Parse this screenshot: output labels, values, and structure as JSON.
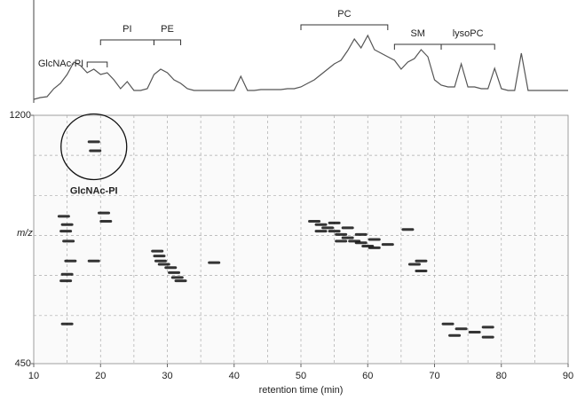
{
  "chart_data": [
    {
      "type": "line",
      "color": "#555",
      "ylim": [
        0,
        100
      ],
      "x": [
        10,
        11,
        12,
        13,
        14,
        15,
        16,
        17,
        18,
        19,
        20,
        21,
        22,
        23,
        24,
        25,
        26,
        27,
        28,
        29,
        30,
        31,
        32,
        33,
        34,
        35,
        36,
        37,
        38,
        39,
        40,
        41,
        42,
        43,
        44,
        45,
        46,
        47,
        48,
        49,
        50,
        51,
        52,
        53,
        54,
        55,
        56,
        57,
        58,
        59,
        60,
        61,
        62,
        63,
        64,
        65,
        66,
        67,
        68,
        69,
        70,
        71,
        72,
        73,
        74,
        75,
        76,
        77,
        78,
        79,
        80,
        81,
        82,
        83,
        84,
        85,
        86,
        87,
        88,
        89,
        90
      ],
      "values": [
        0,
        2,
        3,
        12,
        18,
        28,
        42,
        38,
        30,
        34,
        28,
        30,
        22,
        12,
        20,
        10,
        10,
        12,
        28,
        34,
        30,
        22,
        18,
        12,
        10,
        10,
        10,
        10,
        10,
        10,
        10,
        26,
        10,
        10,
        11,
        11,
        11,
        11,
        12,
        12,
        14,
        18,
        22,
        28,
        34,
        40,
        44,
        55,
        68,
        58,
        72,
        56,
        52,
        48,
        44,
        34,
        42,
        46,
        56,
        48,
        22,
        16,
        14,
        14,
        40,
        14,
        14,
        12,
        12,
        35,
        12,
        10,
        10,
        52,
        10,
        10,
        10,
        10,
        10,
        10,
        10
      ],
      "annotations": [
        {
          "text": "GlcNAc-PI",
          "x": [
            18,
            21
          ]
        },
        {
          "text": "PI",
          "x": [
            20,
            28
          ]
        },
        {
          "text": "PE",
          "x": [
            28,
            32
          ]
        },
        {
          "text": "PC",
          "x": [
            50,
            63
          ]
        },
        {
          "text": "SM",
          "x": [
            64,
            71
          ]
        },
        {
          "text": "lysoPC",
          "x": [
            71,
            79
          ]
        }
      ]
    },
    {
      "type": "scatter",
      "color": "#111",
      "grid": true,
      "xlabel": "retention time (min)",
      "ylabel": "m/z",
      "xlim": [
        10,
        90
      ],
      "xticks": [
        10,
        20,
        30,
        40,
        50,
        60,
        70,
        80,
        90
      ],
      "ylim": [
        450,
        1200
      ],
      "yticks": [
        450,
        1200
      ],
      "x": [
        19.0,
        19.2,
        14.5,
        15,
        14.8,
        15.2,
        15.5,
        15,
        14.8,
        20.5,
        20.8,
        19,
        15,
        28.5,
        28.8,
        29,
        29.5,
        30.5,
        31,
        31.5,
        32,
        37,
        52,
        53,
        54,
        55,
        56,
        57,
        58,
        59,
        60,
        61,
        55,
        57,
        59,
        61,
        63,
        53,
        56,
        66,
        67,
        68,
        68,
        72,
        74,
        76,
        73,
        78,
        78
      ],
      "values": [
        1120,
        1093,
        895,
        870,
        850,
        820,
        760,
        720,
        700,
        905,
        880,
        760,
        570,
        790,
        775,
        760,
        750,
        740,
        725,
        710,
        700,
        755,
        880,
        870,
        860,
        850,
        840,
        830,
        820,
        815,
        805,
        800,
        875,
        860,
        840,
        825,
        810,
        850,
        820,
        855,
        750,
        760,
        730,
        570,
        555,
        545,
        535,
        530,
        560
      ],
      "annotations": [
        {
          "text": "GlcNAc-PI",
          "x": 19,
          "y": 1105
        }
      ]
    }
  ]
}
